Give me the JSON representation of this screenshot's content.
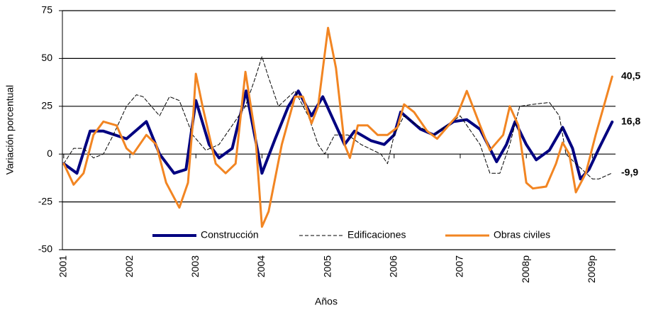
{
  "chart_data": {
    "type": "line",
    "y_label": "Variación porcentual",
    "x_label": "Años",
    "xlim": [
      2000.98,
      2009.35
    ],
    "xticks": [
      {
        "value": 2001,
        "label": "2001"
      },
      {
        "value": 2002,
        "label": "2002"
      },
      {
        "value": 2003,
        "label": "2003"
      },
      {
        "value": 2004,
        "label": "2004"
      },
      {
        "value": 2005,
        "label": "2005"
      },
      {
        "value": 2006,
        "label": "2006"
      },
      {
        "value": 2007,
        "label": "2007"
      },
      {
        "value": 2008,
        "label": "2008p"
      },
      {
        "value": 2009,
        "label": "2009p"
      }
    ],
    "ylim": [
      -50,
      75
    ],
    "yticks": [
      -50,
      -25,
      0,
      25,
      50,
      75
    ],
    "grid": true,
    "legend": "bottom",
    "series": [
      {
        "name": "Construcción",
        "color": "#000080",
        "width": 4,
        "dashed": false,
        "x": [
          2001.0,
          2001.2,
          2001.4,
          2001.6,
          2001.95,
          2002.25,
          2002.45,
          2002.67,
          2002.85,
          2003.0,
          2003.2,
          2003.35,
          2003.55,
          2003.76,
          2004.0,
          2004.2,
          2004.4,
          2004.55,
          2004.75,
          2004.92,
          2005.25,
          2005.4,
          2005.65,
          2005.85,
          2006.0,
          2006.1,
          2006.4,
          2006.6,
          2006.9,
          2007.1,
          2007.3,
          2007.55,
          2007.7,
          2007.83,
          2008.0,
          2008.15,
          2008.35,
          2008.55,
          2008.7,
          2008.82,
          2008.95,
          2009.1,
          2009.3
        ],
        "values": [
          -5,
          -10,
          12,
          12,
          8,
          17,
          0,
          -10,
          -8,
          28,
          5,
          -2,
          3,
          33,
          -10,
          8,
          25,
          33,
          20,
          30,
          5,
          12,
          7,
          5,
          10,
          22,
          13,
          10,
          17,
          18,
          13,
          -4,
          5,
          17,
          5,
          -3,
          2,
          14,
          3,
          -13,
          -8,
          3,
          16.8
        ],
        "value_labels": [
          null,
          null,
          null,
          null,
          null,
          null,
          null,
          null,
          null,
          null,
          null,
          null,
          null,
          null,
          null,
          null,
          null,
          null,
          null,
          null,
          null,
          null,
          null,
          null,
          null,
          null,
          null,
          null,
          null,
          null,
          null,
          null,
          null,
          null,
          null,
          null,
          null,
          null,
          null,
          null,
          null,
          null,
          "16,8"
        ]
      },
      {
        "name": "Edificaciones",
        "color": "#000000",
        "width": 1,
        "dashed": true,
        "x": [
          2001.0,
          2001.15,
          2001.3,
          2001.45,
          2001.6,
          2001.75,
          2001.95,
          2002.1,
          2002.2,
          2002.45,
          2002.6,
          2002.75,
          2002.95,
          2003.15,
          2003.35,
          2003.55,
          2003.75,
          2003.9,
          2004.0,
          2004.1,
          2004.25,
          2004.5,
          2004.7,
          2004.85,
          2004.95,
          2005.1,
          2005.3,
          2005.5,
          2005.8,
          2005.9,
          2006.0,
          2006.15,
          2006.35,
          2006.6,
          2006.8,
          2007.0,
          2007.3,
          2007.45,
          2007.6,
          2007.75,
          2007.9,
          2008.1,
          2008.35,
          2008.5,
          2008.6,
          2008.75,
          2009.0,
          2009.1,
          2009.3
        ],
        "values": [
          -5,
          3,
          3,
          -2,
          0,
          10,
          25,
          31,
          30,
          20,
          30,
          28,
          10,
          2,
          5,
          15,
          25,
          40,
          51,
          40,
          25,
          33,
          20,
          5,
          0,
          10,
          10,
          5,
          0,
          -5,
          10,
          20,
          15,
          10,
          15,
          20,
          5,
          -10,
          -10,
          5,
          25,
          26,
          27,
          20,
          0,
          -5,
          -13,
          -13,
          -9.9
        ],
        "value_labels": [
          null,
          null,
          null,
          null,
          null,
          null,
          null,
          null,
          null,
          null,
          null,
          null,
          null,
          null,
          null,
          null,
          null,
          null,
          null,
          null,
          null,
          null,
          null,
          null,
          null,
          null,
          null,
          null,
          null,
          null,
          null,
          null,
          null,
          null,
          null,
          null,
          null,
          null,
          null,
          null,
          null,
          null,
          null,
          null,
          null,
          null,
          null,
          null,
          "-9,9"
        ]
      },
      {
        "name": "Obras civiles",
        "color": "#f28522",
        "width": 3,
        "dashed": false,
        "x": [
          2001.0,
          2001.15,
          2001.3,
          2001.45,
          2001.6,
          2001.8,
          2001.95,
          2002.05,
          2002.25,
          2002.4,
          2002.55,
          2002.75,
          2002.88,
          2002.95,
          2003.0,
          2003.1,
          2003.3,
          2003.45,
          2003.6,
          2003.75,
          2003.9,
          2004.0,
          2004.1,
          2004.3,
          2004.5,
          2004.62,
          2004.75,
          2004.85,
          2005.0,
          2005.12,
          2005.25,
          2005.33,
          2005.45,
          2005.6,
          2005.75,
          2005.9,
          2006.05,
          2006.15,
          2006.3,
          2006.5,
          2006.65,
          2006.95,
          2007.1,
          2007.3,
          2007.45,
          2007.65,
          2007.75,
          2007.88,
          2008.0,
          2008.1,
          2008.3,
          2008.45,
          2008.55,
          2008.65,
          2008.75,
          2008.9,
          2009.05,
          2009.3
        ],
        "values": [
          -5,
          -16,
          -10,
          10,
          17,
          15,
          3,
          0,
          10,
          5,
          -15,
          -28,
          -15,
          15,
          42,
          25,
          -5,
          -10,
          -5,
          43,
          10,
          -38,
          -30,
          5,
          30,
          30,
          16,
          25,
          66,
          45,
          5,
          -2,
          15,
          15,
          10,
          10,
          14,
          26,
          22,
          12,
          8,
          20,
          33,
          15,
          2,
          10,
          25,
          15,
          -15,
          -18,
          -17,
          -5,
          6,
          0,
          -20,
          -10,
          10,
          40.5
        ],
        "value_labels": [
          null,
          null,
          null,
          null,
          null,
          null,
          null,
          null,
          null,
          null,
          null,
          null,
          null,
          null,
          null,
          null,
          null,
          null,
          null,
          null,
          null,
          null,
          null,
          null,
          null,
          null,
          null,
          null,
          null,
          null,
          null,
          null,
          null,
          null,
          null,
          null,
          null,
          null,
          null,
          null,
          null,
          null,
          null,
          null,
          null,
          null,
          null,
          null,
          null,
          null,
          null,
          null,
          null,
          null,
          null,
          null,
          null,
          "40,5"
        ]
      }
    ]
  }
}
